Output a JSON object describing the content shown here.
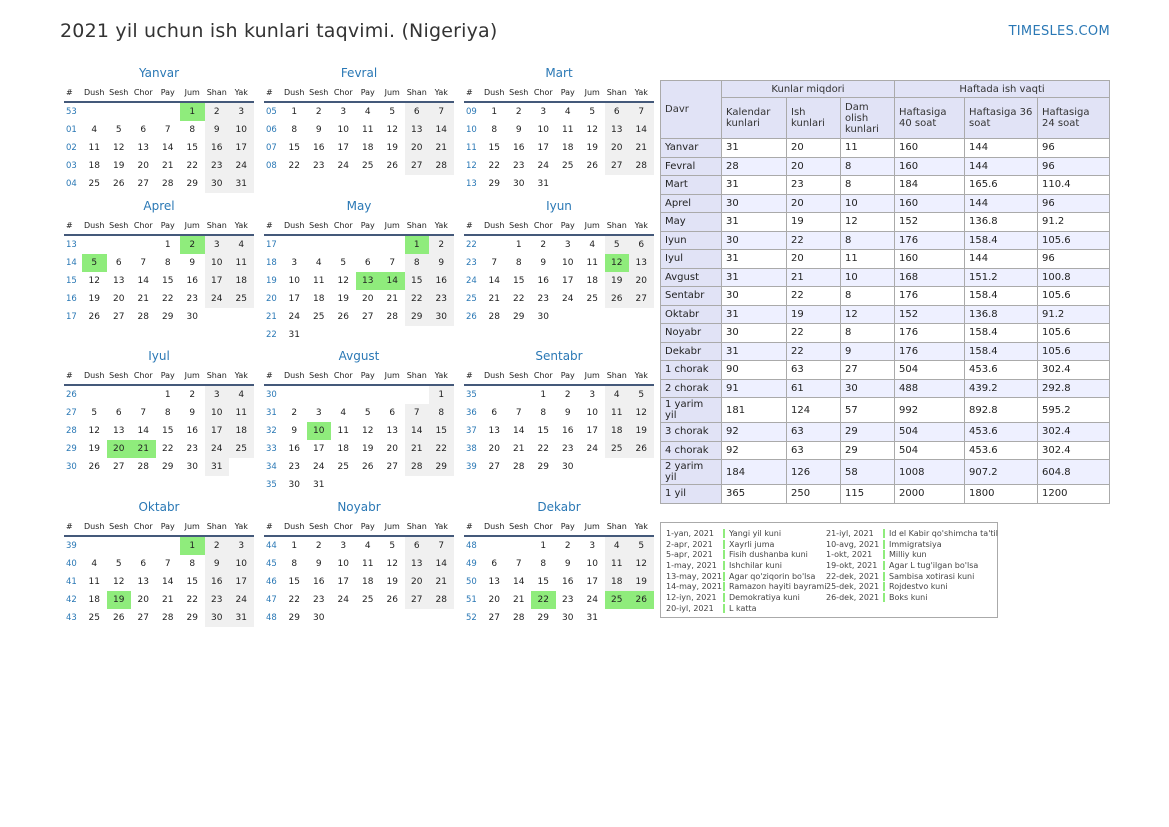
{
  "title": "2021 yil uchun ish kunlari taqvimi. (Nigeriya)",
  "site": "TIMESLES.COM",
  "weekday_labels": [
    "#",
    "Dush",
    "Sesh",
    "Chor",
    "Pay",
    "Jum",
    "Shan",
    "Yak"
  ],
  "colors": {
    "accent": "#2a78b5",
    "holiday": "#8fec7c",
    "weekend": "#f0f0f0",
    "table_header": "#e1e3f6",
    "table_alt": "#eef0ff"
  },
  "months": [
    {
      "name": "Yanvar",
      "weeks": [
        "53",
        "01",
        "02",
        "03",
        "04"
      ],
      "rows": [
        [
          "",
          "",
          "",
          "",
          "1",
          "2",
          "3"
        ],
        [
          "4",
          "5",
          "6",
          "7",
          "8",
          "9",
          "10"
        ],
        [
          "11",
          "12",
          "13",
          "14",
          "15",
          "16",
          "17"
        ],
        [
          "18",
          "19",
          "20",
          "21",
          "22",
          "23",
          "24"
        ],
        [
          "25",
          "26",
          "27",
          "28",
          "29",
          "30",
          "31"
        ]
      ],
      "holidays": [
        "1"
      ]
    },
    {
      "name": "Fevral",
      "weeks": [
        "05",
        "06",
        "07",
        "08"
      ],
      "rows": [
        [
          "1",
          "2",
          "3",
          "4",
          "5",
          "6",
          "7"
        ],
        [
          "8",
          "9",
          "10",
          "11",
          "12",
          "13",
          "14"
        ],
        [
          "15",
          "16",
          "17",
          "18",
          "19",
          "20",
          "21"
        ],
        [
          "22",
          "23",
          "24",
          "25",
          "26",
          "27",
          "28"
        ]
      ],
      "holidays": []
    },
    {
      "name": "Mart",
      "weeks": [
        "09",
        "10",
        "11",
        "12",
        "13"
      ],
      "rows": [
        [
          "1",
          "2",
          "3",
          "4",
          "5",
          "6",
          "7"
        ],
        [
          "8",
          "9",
          "10",
          "11",
          "12",
          "13",
          "14"
        ],
        [
          "15",
          "16",
          "17",
          "18",
          "19",
          "20",
          "21"
        ],
        [
          "22",
          "23",
          "24",
          "25",
          "26",
          "27",
          "28"
        ],
        [
          "29",
          "30",
          "31",
          "",
          "",
          "",
          ""
        ]
      ],
      "holidays": []
    },
    {
      "name": "Aprel",
      "weeks": [
        "13",
        "14",
        "15",
        "16",
        "17"
      ],
      "rows": [
        [
          "",
          "",
          "",
          "1",
          "2",
          "3",
          "4"
        ],
        [
          "5",
          "6",
          "7",
          "8",
          "9",
          "10",
          "11"
        ],
        [
          "12",
          "13",
          "14",
          "15",
          "16",
          "17",
          "18"
        ],
        [
          "19",
          "20",
          "21",
          "22",
          "23",
          "24",
          "25"
        ],
        [
          "26",
          "27",
          "28",
          "29",
          "30",
          "",
          ""
        ]
      ],
      "holidays": [
        "2",
        "5"
      ]
    },
    {
      "name": "May",
      "weeks": [
        "17",
        "18",
        "19",
        "20",
        "21",
        "22"
      ],
      "rows": [
        [
          "",
          "",
          "",
          "",
          "",
          "1",
          "2"
        ],
        [
          "3",
          "4",
          "5",
          "6",
          "7",
          "8",
          "9"
        ],
        [
          "10",
          "11",
          "12",
          "13",
          "14",
          "15",
          "16"
        ],
        [
          "17",
          "18",
          "19",
          "20",
          "21",
          "22",
          "23"
        ],
        [
          "24",
          "25",
          "26",
          "27",
          "28",
          "29",
          "30"
        ],
        [
          "31",
          "",
          "",
          "",
          "",
          "",
          ""
        ]
      ],
      "holidays": [
        "1",
        "13",
        "14"
      ]
    },
    {
      "name": "Iyun",
      "weeks": [
        "22",
        "23",
        "24",
        "25",
        "26"
      ],
      "rows": [
        [
          "",
          "1",
          "2",
          "3",
          "4",
          "5",
          "6"
        ],
        [
          "7",
          "8",
          "9",
          "10",
          "11",
          "12",
          "13"
        ],
        [
          "14",
          "15",
          "16",
          "17",
          "18",
          "19",
          "20"
        ],
        [
          "21",
          "22",
          "23",
          "24",
          "25",
          "26",
          "27"
        ],
        [
          "28",
          "29",
          "30",
          "",
          "",
          "",
          ""
        ]
      ],
      "holidays": [
        "12"
      ]
    },
    {
      "name": "Iyul",
      "weeks": [
        "26",
        "27",
        "28",
        "29",
        "30"
      ],
      "rows": [
        [
          "",
          "",
          "",
          "1",
          "2",
          "3",
          "4"
        ],
        [
          "5",
          "6",
          "7",
          "8",
          "9",
          "10",
          "11"
        ],
        [
          "12",
          "13",
          "14",
          "15",
          "16",
          "17",
          "18"
        ],
        [
          "19",
          "20",
          "21",
          "22",
          "23",
          "24",
          "25"
        ],
        [
          "26",
          "27",
          "28",
          "29",
          "30",
          "31",
          ""
        ]
      ],
      "holidays": [
        "20",
        "21"
      ]
    },
    {
      "name": "Avgust",
      "weeks": [
        "30",
        "31",
        "32",
        "33",
        "34",
        "35"
      ],
      "rows": [
        [
          "",
          "",
          "",
          "",
          "",
          "",
          "1"
        ],
        [
          "2",
          "3",
          "4",
          "5",
          "6",
          "7",
          "8"
        ],
        [
          "9",
          "10",
          "11",
          "12",
          "13",
          "14",
          "15"
        ],
        [
          "16",
          "17",
          "18",
          "19",
          "20",
          "21",
          "22"
        ],
        [
          "23",
          "24",
          "25",
          "26",
          "27",
          "28",
          "29"
        ],
        [
          "30",
          "31",
          "",
          "",
          "",
          "",
          ""
        ]
      ],
      "holidays": [
        "10"
      ]
    },
    {
      "name": "Sentabr",
      "weeks": [
        "35",
        "36",
        "37",
        "38",
        "39"
      ],
      "rows": [
        [
          "",
          "",
          "1",
          "2",
          "3",
          "4",
          "5"
        ],
        [
          "6",
          "7",
          "8",
          "9",
          "10",
          "11",
          "12"
        ],
        [
          "13",
          "14",
          "15",
          "16",
          "17",
          "18",
          "19"
        ],
        [
          "20",
          "21",
          "22",
          "23",
          "24",
          "25",
          "26"
        ],
        [
          "27",
          "28",
          "29",
          "30",
          "",
          "",
          ""
        ]
      ],
      "holidays": []
    },
    {
      "name": "Oktabr",
      "weeks": [
        "39",
        "40",
        "41",
        "42",
        "43"
      ],
      "rows": [
        [
          "",
          "",
          "",
          "",
          "1",
          "2",
          "3"
        ],
        [
          "4",
          "5",
          "6",
          "7",
          "8",
          "9",
          "10"
        ],
        [
          "11",
          "12",
          "13",
          "14",
          "15",
          "16",
          "17"
        ],
        [
          "18",
          "19",
          "20",
          "21",
          "22",
          "23",
          "24"
        ],
        [
          "25",
          "26",
          "27",
          "28",
          "29",
          "30",
          "31"
        ]
      ],
      "holidays": [
        "1",
        "19"
      ]
    },
    {
      "name": "Noyabr",
      "weeks": [
        "44",
        "45",
        "46",
        "47",
        "48"
      ],
      "rows": [
        [
          "1",
          "2",
          "3",
          "4",
          "5",
          "6",
          "7"
        ],
        [
          "8",
          "9",
          "10",
          "11",
          "12",
          "13",
          "14"
        ],
        [
          "15",
          "16",
          "17",
          "18",
          "19",
          "20",
          "21"
        ],
        [
          "22",
          "23",
          "24",
          "25",
          "26",
          "27",
          "28"
        ],
        [
          "29",
          "30",
          "",
          "",
          "",
          "",
          ""
        ]
      ],
      "holidays": []
    },
    {
      "name": "Dekabr",
      "weeks": [
        "48",
        "49",
        "50",
        "51",
        "52"
      ],
      "rows": [
        [
          "",
          "",
          "1",
          "2",
          "3",
          "4",
          "5"
        ],
        [
          "6",
          "7",
          "8",
          "9",
          "10",
          "11",
          "12"
        ],
        [
          "13",
          "14",
          "15",
          "16",
          "17",
          "18",
          "19"
        ],
        [
          "20",
          "21",
          "22",
          "23",
          "24",
          "25",
          "26"
        ],
        [
          "27",
          "28",
          "29",
          "30",
          "31",
          "",
          ""
        ]
      ],
      "holidays": [
        "22",
        "25",
        "26"
      ]
    }
  ],
  "summary": {
    "col_davr": "Davr",
    "group_days": "Kunlar miqdori",
    "group_hours": "Haftada ish vaqti",
    "headers": [
      "Kalendar kunlari",
      "Ish kunlari",
      "Dam olish kunlari",
      "Haftasiga 40 soat",
      "Haftasiga 36 soat",
      "Haftasiga 24 soat"
    ],
    "rows": [
      [
        "Yanvar",
        "31",
        "20",
        "11",
        "160",
        "144",
        "96"
      ],
      [
        "Fevral",
        "28",
        "20",
        "8",
        "160",
        "144",
        "96"
      ],
      [
        "Mart",
        "31",
        "23",
        "8",
        "184",
        "165.6",
        "110.4"
      ],
      [
        "Aprel",
        "30",
        "20",
        "10",
        "160",
        "144",
        "96"
      ],
      [
        "May",
        "31",
        "19",
        "12",
        "152",
        "136.8",
        "91.2"
      ],
      [
        "Iyun",
        "30",
        "22",
        "8",
        "176",
        "158.4",
        "105.6"
      ],
      [
        "Iyul",
        "31",
        "20",
        "11",
        "160",
        "144",
        "96"
      ],
      [
        "Avgust",
        "31",
        "21",
        "10",
        "168",
        "151.2",
        "100.8"
      ],
      [
        "Sentabr",
        "30",
        "22",
        "8",
        "176",
        "158.4",
        "105.6"
      ],
      [
        "Oktabr",
        "31",
        "19",
        "12",
        "152",
        "136.8",
        "91.2"
      ],
      [
        "Noyabr",
        "30",
        "22",
        "8",
        "176",
        "158.4",
        "105.6"
      ],
      [
        "Dekabr",
        "31",
        "22",
        "9",
        "176",
        "158.4",
        "105.6"
      ],
      [
        "1 chorak",
        "90",
        "63",
        "27",
        "504",
        "453.6",
        "302.4"
      ],
      [
        "2 chorak",
        "91",
        "61",
        "30",
        "488",
        "439.2",
        "292.8"
      ],
      [
        "1 yarim yil",
        "181",
        "124",
        "57",
        "992",
        "892.8",
        "595.2"
      ],
      [
        "3 chorak",
        "92",
        "63",
        "29",
        "504",
        "453.6",
        "302.4"
      ],
      [
        "4 chorak",
        "92",
        "63",
        "29",
        "504",
        "453.6",
        "302.4"
      ],
      [
        "2 yarim yil",
        "184",
        "126",
        "58",
        "1008",
        "907.2",
        "604.8"
      ],
      [
        "1 yil",
        "365",
        "250",
        "115",
        "2000",
        "1800",
        "1200"
      ]
    ]
  },
  "holidays": [
    [
      {
        "date": "1-yan, 2021",
        "name": "Yangi yil kuni"
      },
      {
        "date": "2-apr, 2021",
        "name": "Xayrli juma"
      },
      {
        "date": "5-apr, 2021",
        "name": "Fisih dushanba kuni"
      },
      {
        "date": "1-may, 2021",
        "name": "Ishchilar kuni"
      },
      {
        "date": "13-may, 2021",
        "name": "Agar qo'ziqorin bo'lsa"
      },
      {
        "date": "14-may, 2021",
        "name": "Ramazon hayiti bayrami"
      },
      {
        "date": "12-iyn, 2021",
        "name": "Demokratiya kuni"
      },
      {
        "date": "20-iyl, 2021",
        "name": "L katta"
      }
    ],
    [
      {
        "date": "21-iyl, 2021",
        "name": "Id el Kabir qo'shimcha ta'til"
      },
      {
        "date": "10-avg, 2021",
        "name": "Immigratsiya"
      },
      {
        "date": "1-okt, 2021",
        "name": "Milliy kun"
      },
      {
        "date": "19-okt, 2021",
        "name": "Agar L tug'ilgan bo'lsa"
      },
      {
        "date": "22-dek, 2021",
        "name": "Sambisa xotirasi kuni"
      },
      {
        "date": "25-dek, 2021",
        "name": "Rojdestvo kuni"
      },
      {
        "date": "26-dek, 2021",
        "name": "Boks kuni"
      }
    ]
  ]
}
